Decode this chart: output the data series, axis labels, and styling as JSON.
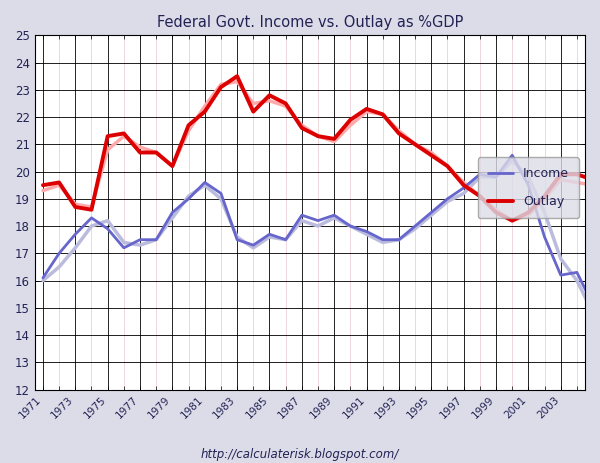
{
  "title": "Federal Govt. Income vs. Outlay as %GDP",
  "subtitle": "http://calculaterisk.blogspot.com/",
  "years": [
    1971,
    1972,
    1973,
    1974,
    1975,
    1976,
    1977,
    1978,
    1979,
    1980,
    1981,
    1982,
    1983,
    1984,
    1985,
    1986,
    1987,
    1988,
    1989,
    1990,
    1991,
    1992,
    1993,
    1994,
    1995,
    1996,
    1997,
    1998,
    1999,
    2000,
    2001,
    2002,
    2003,
    2004,
    2005
  ],
  "income": [
    16.1,
    17.0,
    17.7,
    18.3,
    17.9,
    17.2,
    17.5,
    17.5,
    18.5,
    19.0,
    19.6,
    19.2,
    17.5,
    17.3,
    17.7,
    17.5,
    18.4,
    18.2,
    18.4,
    18.0,
    17.8,
    17.5,
    17.5,
    18.0,
    18.5,
    19.0,
    19.4,
    19.9,
    19.8,
    20.6,
    19.5,
    17.6,
    16.2,
    16.3,
    15.1
  ],
  "outlay": [
    19.5,
    19.6,
    18.7,
    18.6,
    21.3,
    21.4,
    20.7,
    20.7,
    20.2,
    21.7,
    22.2,
    23.1,
    23.5,
    22.2,
    22.8,
    22.5,
    21.6,
    21.3,
    21.2,
    21.9,
    22.3,
    22.1,
    21.4,
    21.0,
    20.6,
    20.2,
    19.5,
    19.1,
    18.5,
    18.2,
    18.5,
    19.1,
    19.9,
    19.9,
    19.7
  ],
  "income_shadow": [
    16.0,
    16.5,
    17.2,
    18.0,
    18.2,
    17.4,
    17.3,
    17.5,
    18.3,
    19.1,
    19.5,
    19.0,
    17.6,
    17.2,
    17.6,
    17.5,
    18.2,
    18.0,
    18.3,
    18.0,
    17.7,
    17.4,
    17.5,
    17.9,
    18.4,
    18.9,
    19.2,
    19.8,
    19.8,
    20.4,
    19.8,
    18.5,
    16.8,
    16.0,
    14.8
  ],
  "outlay_shadow": [
    19.3,
    19.5,
    18.8,
    18.7,
    20.8,
    21.3,
    20.9,
    20.7,
    20.2,
    21.5,
    22.4,
    23.2,
    23.3,
    22.5,
    22.6,
    22.4,
    21.7,
    21.3,
    21.1,
    21.7,
    22.2,
    22.1,
    21.5,
    21.0,
    20.7,
    20.2,
    19.6,
    19.1,
    18.6,
    18.2,
    18.4,
    19.0,
    19.7,
    19.6,
    19.5
  ],
  "income_color": "#6666cc",
  "outlay_color": "#dd0000",
  "income_shadow_color": "#bbbbdd",
  "outlay_shadow_color": "#ffaaaa",
  "ylim": [
    12,
    25
  ],
  "yticks": [
    12,
    13,
    14,
    15,
    16,
    17,
    18,
    19,
    20,
    21,
    22,
    23,
    24,
    25
  ],
  "xticks": [
    1971,
    1973,
    1975,
    1977,
    1979,
    1981,
    1983,
    1985,
    1987,
    1989,
    1991,
    1993,
    1995,
    1997,
    1999,
    2001,
    2003
  ],
  "xlim": [
    1970.5,
    2004.5
  ],
  "bg_color": "#dcdce8",
  "plot_bg_color": "#ffffff",
  "grid_major_color": "#000000",
  "grid_minor_x_color": "#cc8899",
  "grid_minor_y_color": "#cc8899",
  "title_color": "#222255",
  "label_color": "#222255",
  "legend_labels": [
    "Income",
    "Outlay"
  ]
}
